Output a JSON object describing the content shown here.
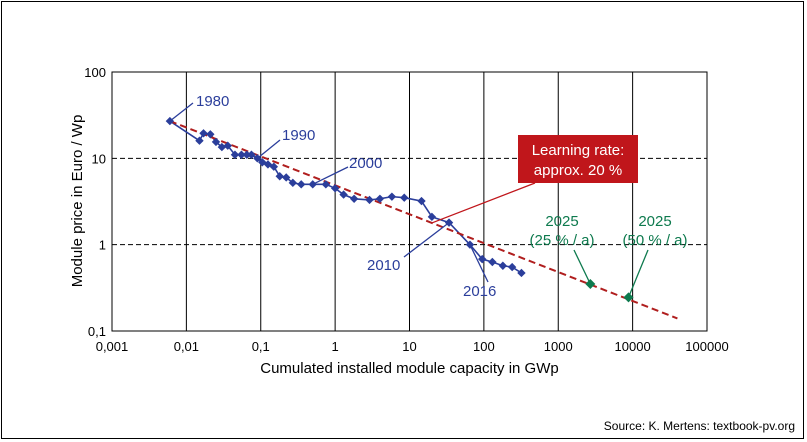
{
  "chart_data": {
    "type": "scatter",
    "x_scale": "log",
    "y_scale": "log",
    "xlim": [
      0.001,
      100000
    ],
    "ylim": [
      0.1,
      100
    ],
    "xlabel": "Cumulated installed module capacity in GWp",
    "ylabel": "Module price in Euro / Wp",
    "x_ticks": [
      "0,001",
      "0,01",
      "0,1",
      "1",
      "10",
      "100",
      "1000",
      "10000",
      "100000"
    ],
    "y_ticks": [
      "0,1",
      "1",
      "10",
      "100"
    ],
    "grid": true,
    "colors": {
      "history": "#2B3E9B",
      "trend": "#B01E1E",
      "forecast": "#0E7A4E",
      "box": "#C0161B"
    },
    "series": [
      {
        "kind": "historical",
        "x": [
          0.006,
          0.015,
          0.017,
          0.021,
          0.025,
          0.03,
          0.036,
          0.045,
          0.055,
          0.065,
          0.075,
          0.09,
          0.105,
          0.125,
          0.15,
          0.18,
          0.22,
          0.27,
          0.35,
          0.5,
          0.75,
          1.0,
          1.3,
          1.8,
          2.9,
          4.0,
          5.8,
          8.5,
          14.5,
          20,
          34,
          65,
          95,
          130,
          180,
          240,
          320
        ],
        "y": [
          27,
          16,
          19.5,
          19,
          15.5,
          13.5,
          14,
          11,
          11,
          11,
          11,
          10,
          9,
          8.5,
          8,
          6.2,
          6,
          5.2,
          5,
          5,
          5,
          4.5,
          3.8,
          3.4,
          3.3,
          3.4,
          3.6,
          3.5,
          3.2,
          2.1,
          1.8,
          1.0,
          0.68,
          0.63,
          0.57,
          0.55,
          0.47
        ]
      },
      {
        "kind": "learning_curve",
        "x": [
          0.006,
          40000
        ],
        "y": [
          27,
          0.14
        ]
      },
      {
        "kind": "forecast",
        "x": [
          2700,
          8800
        ],
        "y": [
          0.35,
          0.245
        ]
      }
    ],
    "annotations": {
      "year_1980": "1980",
      "year_1990": "1990",
      "year_2000": "2000",
      "year_2010": "2010",
      "year_2016": "2016",
      "forecast_25_year": "2025",
      "forecast_25_rate": "(25 % / a)",
      "forecast_50_year": "2025",
      "forecast_50_rate": "(50 % / a)",
      "learning_rate_line1": "Learning rate:",
      "learning_rate_line2": "approx. 20 %"
    }
  },
  "source": "Source: K. Mertens: textbook-pv.org"
}
